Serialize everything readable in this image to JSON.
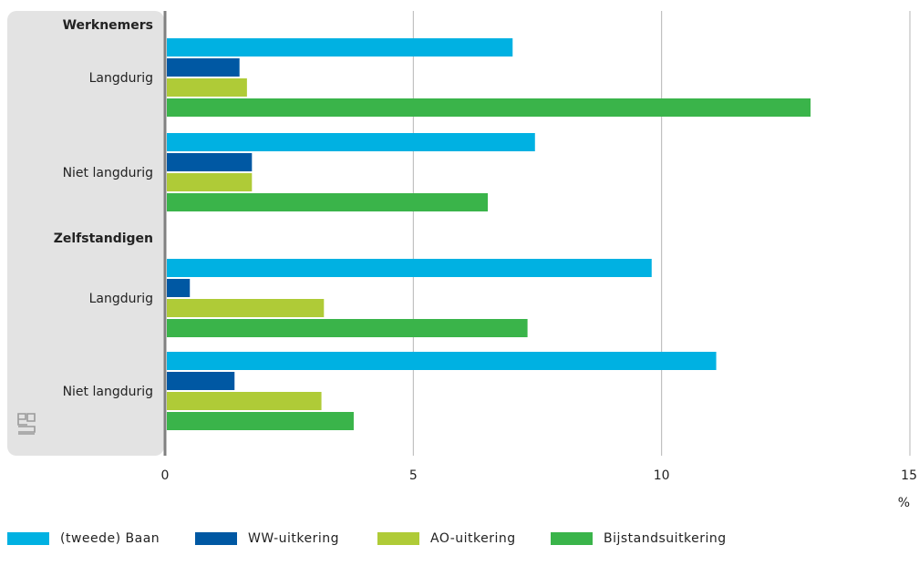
{
  "chart_data": {
    "type": "bar",
    "orientation": "horizontal",
    "unit": "%",
    "xlim": [
      0,
      15
    ],
    "xticks": [
      0,
      5,
      10,
      15
    ],
    "groups": [
      {
        "name": "Werknemers",
        "categories": [
          {
            "label": "Langdurig",
            "values": [
              7.0,
              1.5,
              1.65,
              13.0
            ]
          },
          {
            "label": "Niet langdurig",
            "values": [
              7.45,
              1.75,
              1.75,
              6.5
            ]
          }
        ]
      },
      {
        "name": "Zelfstandigen",
        "categories": [
          {
            "label": "Langdurig",
            "values": [
              9.8,
              0.5,
              3.2,
              7.3
            ]
          },
          {
            "label": "Niet langdurig",
            "values": [
              11.1,
              1.4,
              3.15,
              3.8
            ]
          }
        ]
      }
    ],
    "series": [
      {
        "name": "(tweede) Baan",
        "color": "#00b1e2"
      },
      {
        "name": "WW-uitkering",
        "color": "#0058a3"
      },
      {
        "name": "AO-uitkering",
        "color": "#afcb37"
      },
      {
        "name": "Bijstandsuitkering",
        "color": "#3ab44a"
      }
    ],
    "grid": true,
    "legend_position": "bottom-left",
    "logo_icon": "cbs-logo-icon"
  }
}
